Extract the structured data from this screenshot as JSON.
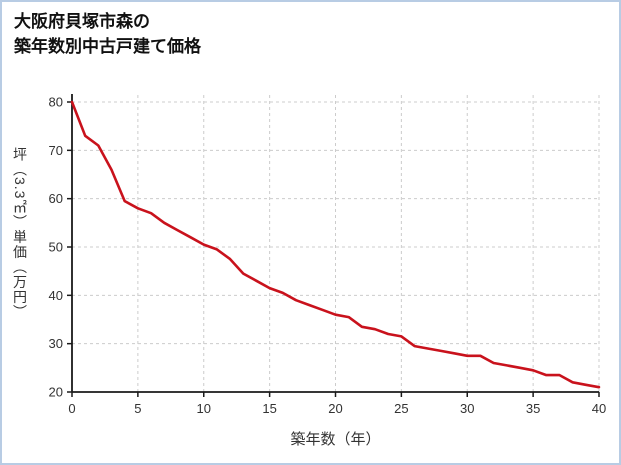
{
  "title": {
    "line1": "大阪府貝塚市森の",
    "line2": "築年数別中古戸建て価格"
  },
  "chart_data": {
    "type": "line",
    "title": "大阪府貝塚市森の築年数別中古戸建て価格",
    "xlabel": "築年数（年）",
    "ylabel": "坪（3.3㎡）単価（万円）",
    "xlim": [
      0,
      40
    ],
    "ylim": [
      20,
      80
    ],
    "xticks": [
      0,
      5,
      10,
      15,
      20,
      25,
      30,
      35,
      40
    ],
    "yticks": [
      20,
      30,
      40,
      50,
      60,
      70,
      80
    ],
    "grid": "dashed",
    "legend": "none",
    "x": [
      0,
      1,
      2,
      3,
      4,
      5,
      6,
      7,
      8,
      9,
      10,
      11,
      12,
      13,
      14,
      15,
      16,
      17,
      18,
      19,
      20,
      21,
      22,
      23,
      24,
      25,
      26,
      27,
      28,
      29,
      30,
      31,
      32,
      33,
      34,
      35,
      36,
      37,
      38,
      39,
      40
    ],
    "values": [
      80,
      73,
      71,
      66,
      59.5,
      58,
      57,
      55,
      53.5,
      52,
      50.5,
      49.5,
      47.5,
      44.5,
      43,
      41.5,
      40.5,
      39,
      38,
      37,
      36,
      35.5,
      33.5,
      33,
      32,
      31.5,
      29.5,
      29,
      28.5,
      28,
      27.5,
      27.5,
      26,
      25.5,
      25,
      24.5,
      23.5,
      23.5,
      22,
      21.5,
      21
    ],
    "line_color": "#c9121c",
    "grid_color": "#cccccc",
    "axis_color": "#1a1a1a",
    "text_color": "#333333"
  }
}
